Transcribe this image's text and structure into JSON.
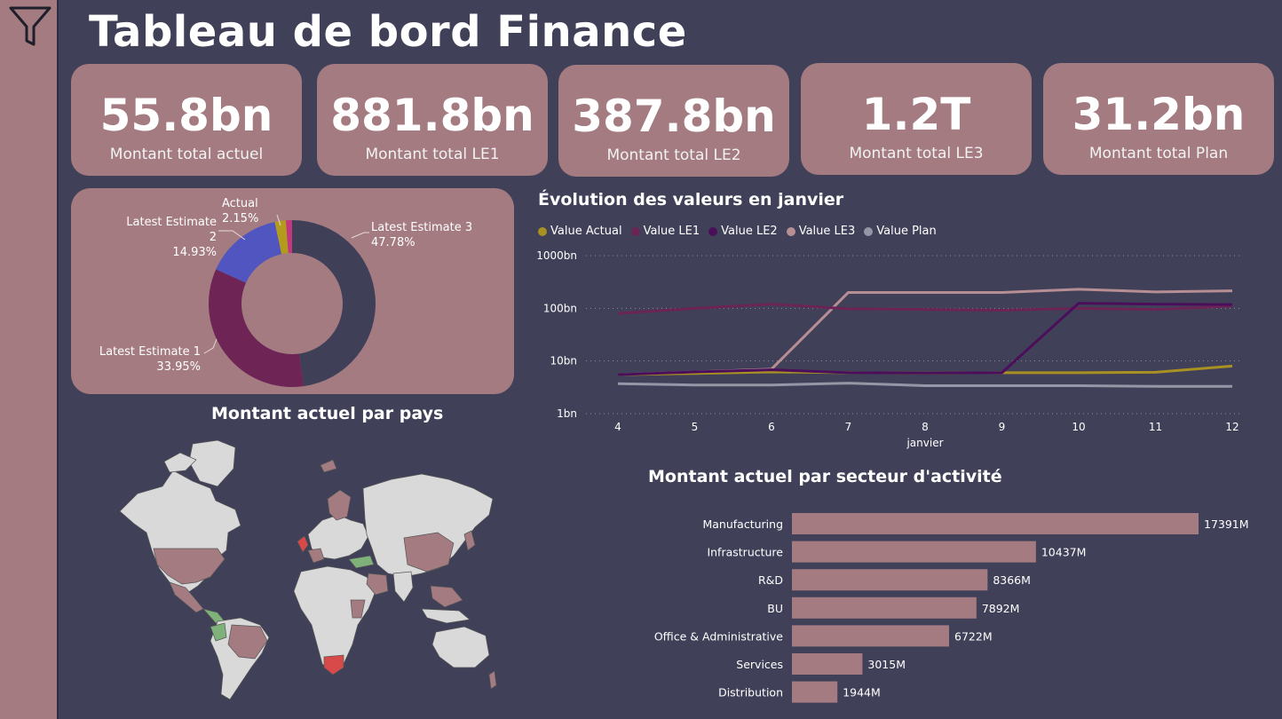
{
  "title": "Tableau de bord Finance",
  "kpis": [
    {
      "value": "55.8bn",
      "label": "Montant total actuel"
    },
    {
      "value": "881.8bn",
      "label": "Montant total LE1"
    },
    {
      "value": "387.8bn",
      "label": "Montant total LE2"
    },
    {
      "value": "1.2T",
      "label": "Montant total LE3"
    },
    {
      "value": "31.2bn",
      "label": "Montant total Plan"
    }
  ],
  "colors": {
    "background": "#404159",
    "card": "#a37b80",
    "actual": "#a89022",
    "le1": "#6b2455",
    "le2": "#4b0e5a",
    "le3": "#b68e94",
    "plan": "#9597a6",
    "donut_le3": "#3f4058",
    "donut_le1": "#6e2455",
    "donut_le2": "#5055bf",
    "donut_actual": "#b39b1e",
    "map_land": "#d9d9d9",
    "map_highlight": "#a37b80",
    "map_green": "#7fb27a",
    "map_red": "#d84a4a"
  },
  "donut": {
    "slices": [
      {
        "name": "Latest Estimate 3",
        "pct": "47.78%",
        "value": 47.78,
        "color": "#3f4058"
      },
      {
        "name": "Latest Estimate 1",
        "pct": "33.95%",
        "value": 33.95,
        "color": "#6e2455"
      },
      {
        "name": "Latest Estimate 2",
        "pct": "14.93%",
        "value": 14.93,
        "color": "#5055bf"
      },
      {
        "name": "Actual",
        "pct": "2.15%",
        "value": 2.15,
        "color": "#b39b1e"
      },
      {
        "name": "",
        "pct": "",
        "value": 1.19,
        "color": "#c2377e"
      }
    ]
  },
  "line_section": {
    "title": "Évolution des valeurs en janvier"
  },
  "map_section": {
    "title": "Montant actuel par pays"
  },
  "bar_section": {
    "title": "Montant actuel par secteur d'activité"
  },
  "chart_data": [
    {
      "type": "line",
      "title": "Évolution des valeurs en janvier",
      "xlabel": "janvier",
      "ylabel": "",
      "scale": "log",
      "ylim": [
        1,
        1000
      ],
      "y_ticks": [
        "1bn",
        "10bn",
        "100bn",
        "1000bn"
      ],
      "x": [
        4,
        5,
        6,
        7,
        8,
        9,
        10,
        11,
        12
      ],
      "x_ticks": [
        "4",
        "5",
        "6",
        "7",
        "8",
        "9",
        "10",
        "11",
        "12"
      ],
      "legend_position": "top-left",
      "series": [
        {
          "name": "Value Actual",
          "color": "#a89022",
          "values": [
            5.5,
            5.8,
            6.2,
            6,
            5.9,
            6,
            6,
            6.1,
            8
          ]
        },
        {
          "name": "Value LE1",
          "color": "#6b2455",
          "values": [
            80,
            100,
            120,
            98,
            95,
            92,
            100,
            95,
            110
          ]
        },
        {
          "name": "Value LE2",
          "color": "#4b0e5a",
          "values": [
            5.5,
            6.2,
            6.8,
            6,
            5.9,
            6,
            125,
            120,
            118
          ]
        },
        {
          "name": "Value LE3",
          "color": "#b68e94",
          "values": [
            5.5,
            6.2,
            7,
            200,
            200,
            200,
            230,
            205,
            215
          ]
        },
        {
          "name": "Value Plan",
          "color": "#9597a6",
          "values": [
            3.7,
            3.5,
            3.5,
            3.8,
            3.4,
            3.4,
            3.4,
            3.3,
            3.3
          ]
        }
      ]
    },
    {
      "type": "bar",
      "title": "Montant actuel par secteur d'activité",
      "orientation": "horizontal",
      "categories": [
        "Manufacturing",
        "Infrastructure",
        "R&D",
        "BU",
        "Office & Administrative",
        "Services",
        "Distribution"
      ],
      "values": [
        17391,
        10437,
        8366,
        7892,
        6722,
        3015,
        1944
      ],
      "labels": [
        "17391M",
        "10437M",
        "8366M",
        "7892M",
        "6722M",
        "3015M",
        "1944M"
      ],
      "unit": "M",
      "color": "#a37b80"
    },
    {
      "type": "pie",
      "style": "donut",
      "categories": [
        "Latest Estimate 3",
        "Latest Estimate 1",
        "Latest Estimate 2",
        "Actual"
      ],
      "values": [
        47.78,
        33.95,
        14.93,
        2.15
      ]
    }
  ]
}
